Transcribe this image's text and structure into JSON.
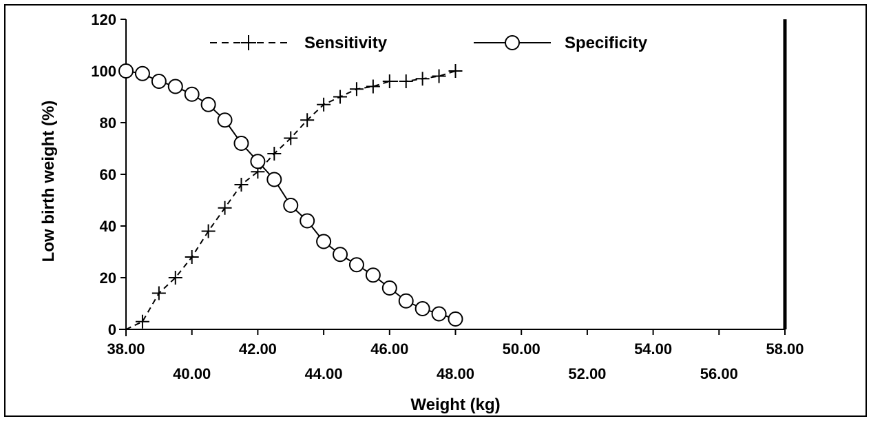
{
  "chart_data": {
    "type": "line",
    "xlabel": "Weight (kg)",
    "ylabel": "Low birth weight (%)",
    "xlim": [
      38,
      58
    ],
    "ylim": [
      0,
      120
    ],
    "x_ticks": [
      "38.00",
      "40.00",
      "42.00",
      "44.00",
      "46.00",
      "48.00",
      "50.00",
      "52.00",
      "54.00",
      "56.00",
      "58.00"
    ],
    "x_tick_values": [
      38,
      40,
      42,
      44,
      46,
      48,
      50,
      52,
      54,
      56,
      58
    ],
    "y_ticks": [
      "0",
      "20",
      "40",
      "60",
      "80",
      "100",
      "120"
    ],
    "y_tick_values": [
      0,
      20,
      40,
      60,
      80,
      100,
      120
    ],
    "legend_position": "top",
    "x": [
      38,
      38.5,
      39,
      39.5,
      40,
      40.5,
      41,
      41.5,
      42,
      42.5,
      43,
      43.5,
      44,
      44.5,
      45,
      45.5,
      46,
      46.5,
      47,
      47.5,
      48
    ],
    "series": [
      {
        "name": "Sensitivity",
        "marker": "plus",
        "line": "dashed",
        "color": "#000000",
        "values": [
          0,
          3,
          14,
          20,
          28,
          38,
          47,
          56,
          61,
          68,
          74,
          81,
          87,
          90,
          93,
          94,
          96,
          96,
          97,
          98,
          100
        ]
      },
      {
        "name": "Specificity",
        "marker": "circle",
        "line": "solid",
        "color": "#000000",
        "values": [
          100,
          99,
          96,
          94,
          91,
          87,
          81,
          72,
          65,
          58,
          48,
          42,
          34,
          29,
          25,
          21,
          16,
          11,
          8,
          6,
          4
        ]
      }
    ]
  }
}
